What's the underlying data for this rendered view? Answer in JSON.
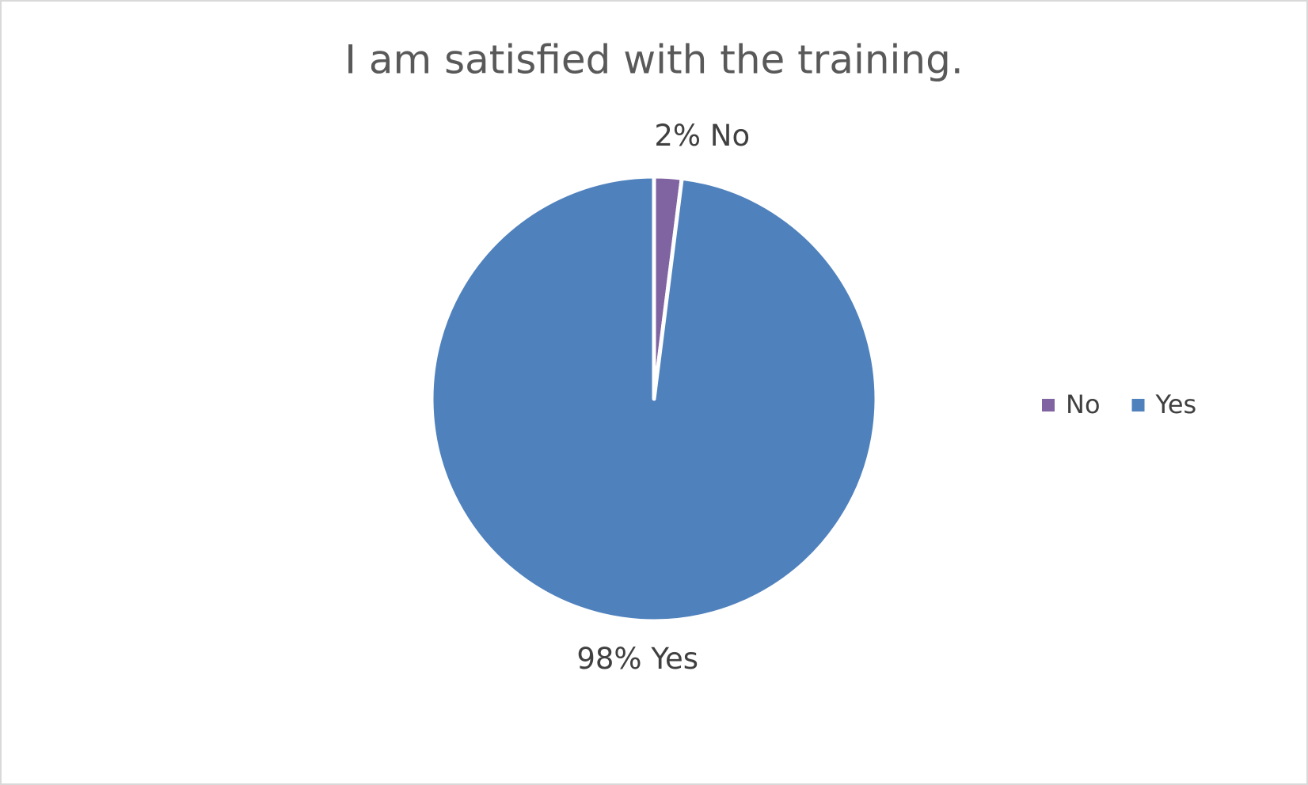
{
  "chart_data": {
    "type": "pie",
    "title": "I am satisfied with the training.",
    "categories": [
      "No",
      "Yes"
    ],
    "values": [
      2,
      98
    ],
    "value_labels": [
      "2% No",
      "98% Yes"
    ],
    "colors": [
      "#8064a2",
      "#4f81bd"
    ],
    "legend": "right"
  }
}
